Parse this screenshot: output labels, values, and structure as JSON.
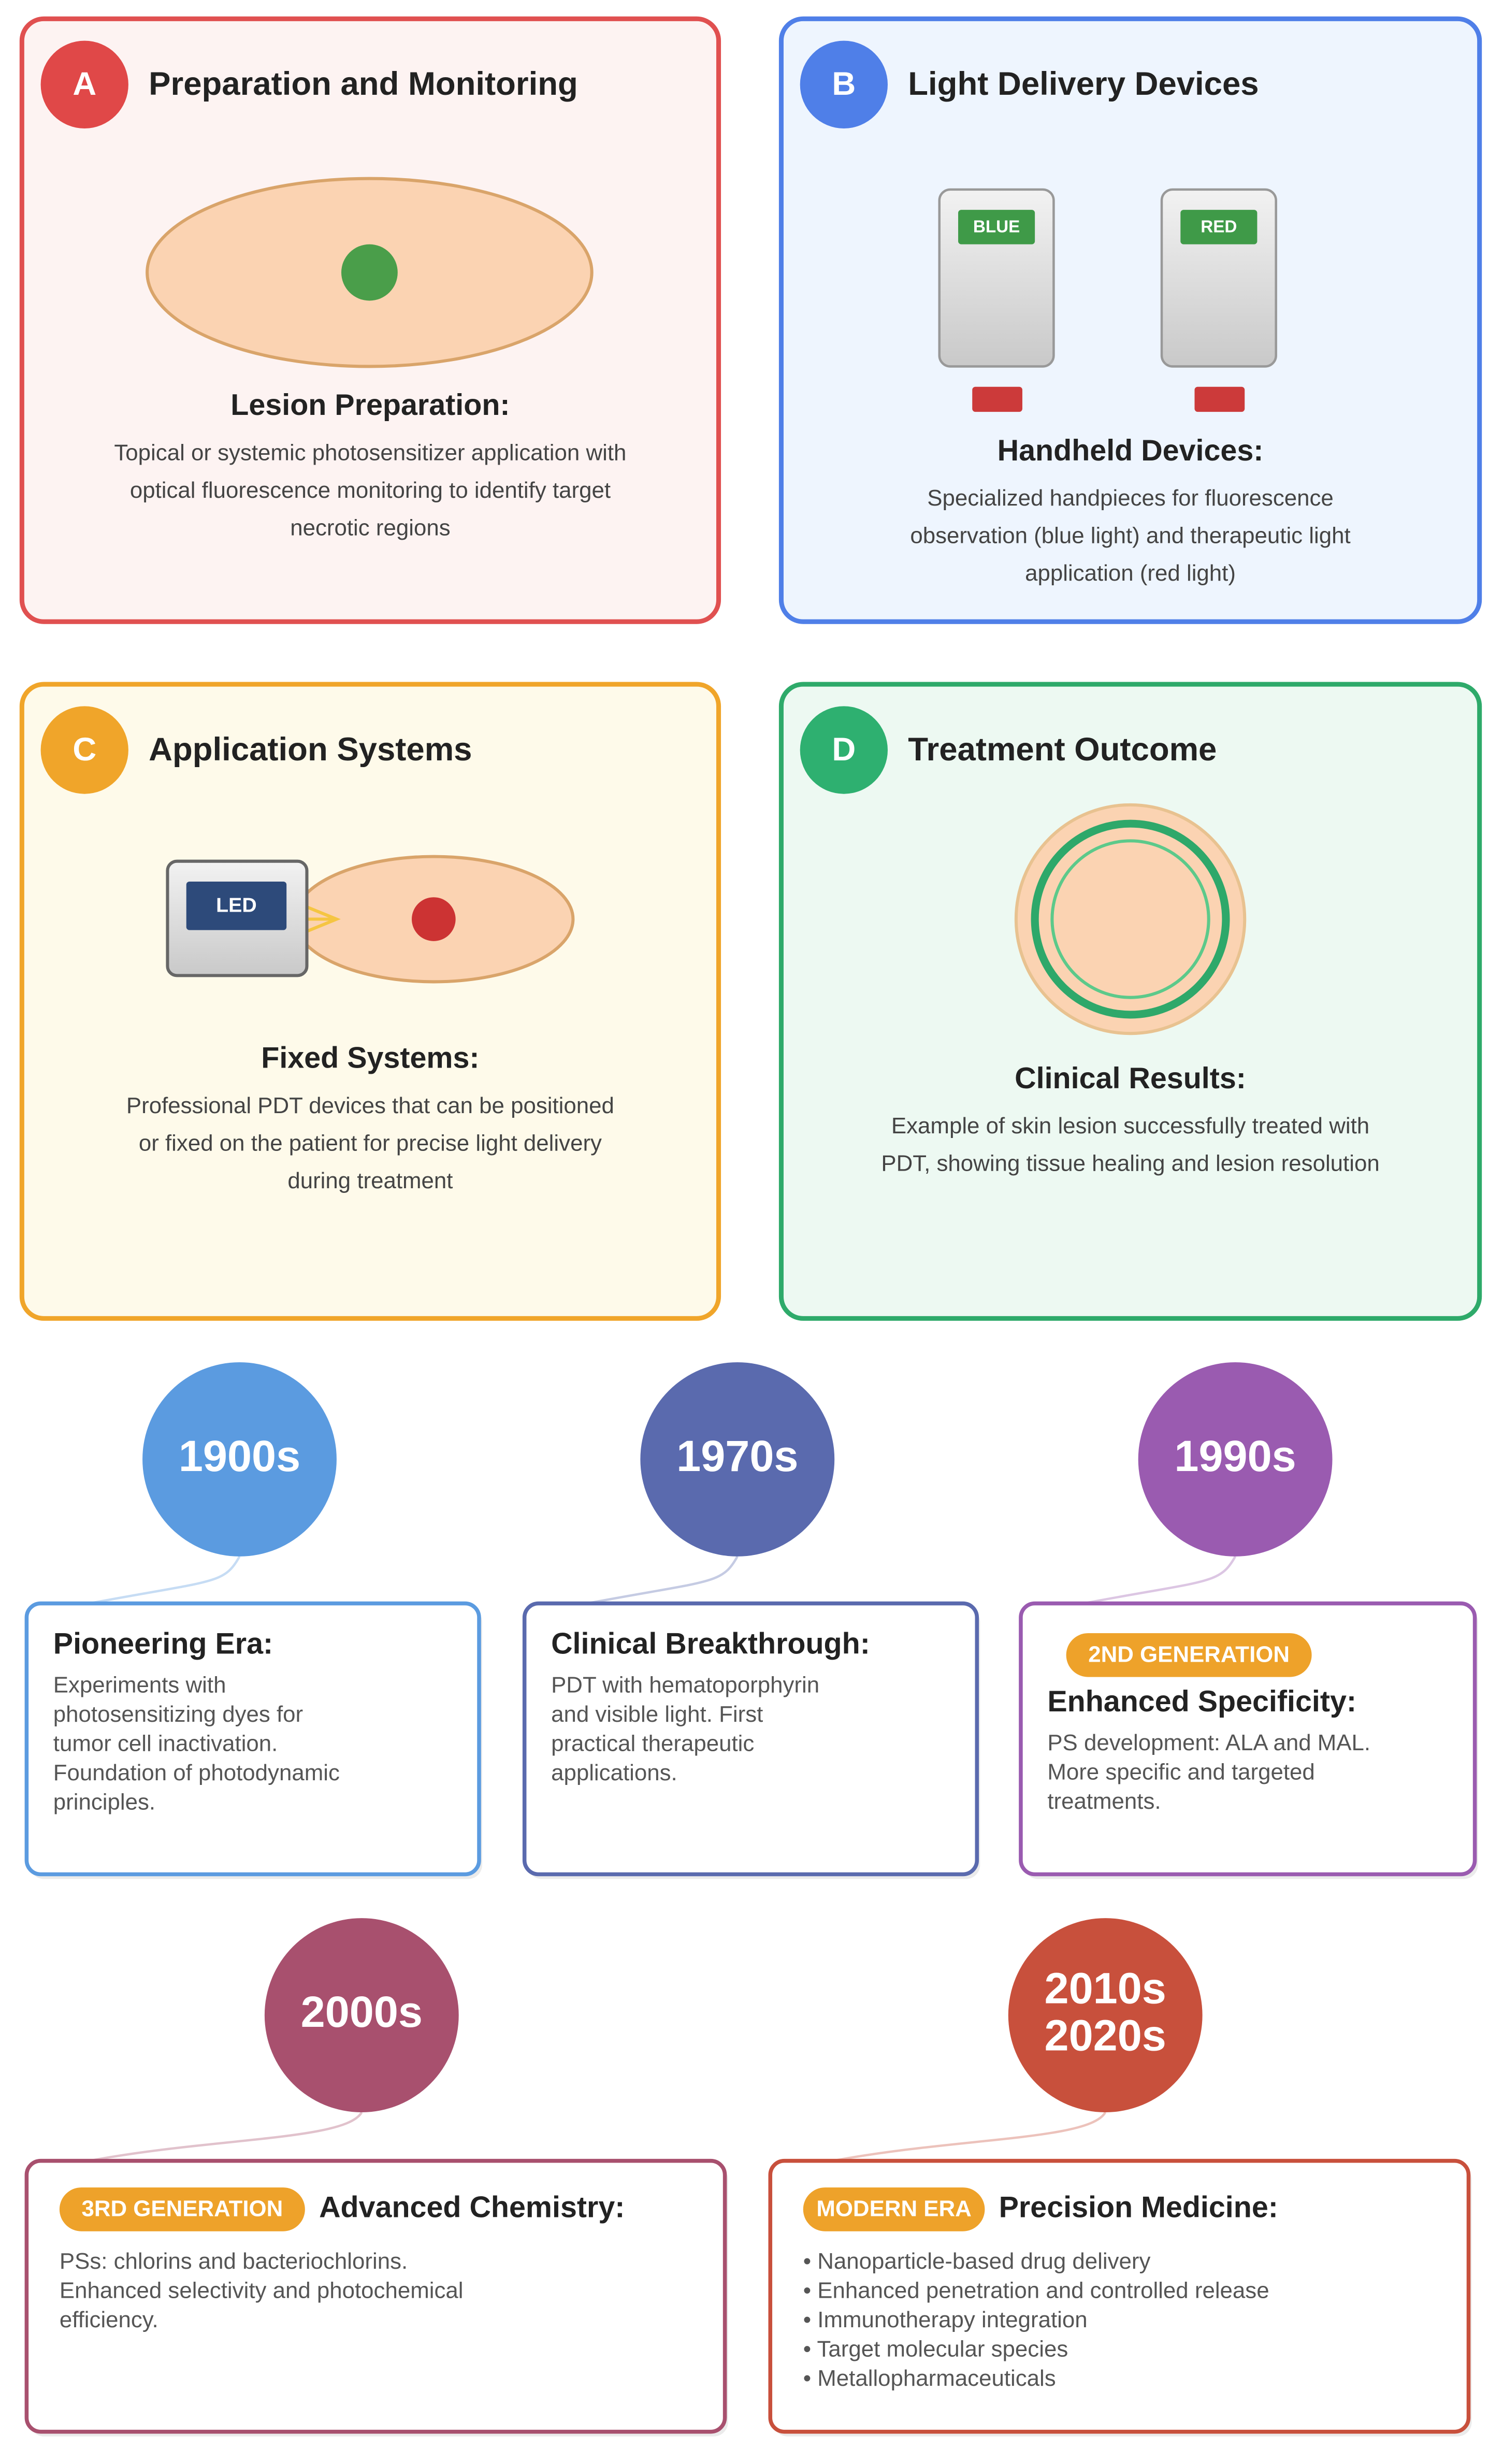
{
  "panels": [
    {
      "letter": "A",
      "title": "Preparation and Monitoring",
      "subtitle": "Lesion Preparation:",
      "description": [
        "Topical or systemic photosensitizer application with",
        "optical fluorescence monitoring to identify target",
        "necrotic regions"
      ]
    },
    {
      "letter": "B",
      "title": "Light Delivery Devices",
      "device_labels": [
        "BLUE",
        "RED"
      ],
      "subtitle": "Handheld Devices:",
      "description": [
        "Specialized handpieces for fluorescence",
        "observation (blue light) and therapeutic light",
        "application (red light)"
      ]
    },
    {
      "letter": "C",
      "title": "Application Systems",
      "device_label": "LED",
      "subtitle": "Fixed Systems:",
      "description": [
        "Professional PDT devices that can be positioned",
        "or fixed on the patient for precise light delivery",
        "during treatment"
      ]
    },
    {
      "letter": "D",
      "title": "Treatment Outcome",
      "subtitle": "Clinical Results:",
      "description": [
        "Example of skin lesion successfully treated with",
        "PDT, showing tissue healing and lesion resolution"
      ]
    }
  ],
  "timeline": [
    {
      "era": [
        "1900s"
      ],
      "title": "Pioneering Era:",
      "description": [
        "Experiments with",
        "photosensitizing dyes for",
        "tumor cell inactivation.",
        "Foundation of photodynamic",
        "principles."
      ]
    },
    {
      "era": [
        "1970s"
      ],
      "title": "Clinical Breakthrough:",
      "description": [
        "PDT with hematoporphyrin",
        "and visible light. First",
        "practical therapeutic",
        "applications."
      ]
    },
    {
      "era": [
        "1990s"
      ],
      "badge": "2ND GENERATION",
      "title": "Enhanced Specificity:",
      "description": [
        "PS development: ALA and MAL.",
        "More specific and targeted",
        "treatments."
      ]
    },
    {
      "era": [
        "2000s"
      ],
      "badge": "3RD GENERATION",
      "title": "Advanced Chemistry:",
      "description": [
        "PSs: chlorins and bacteriochlorins.",
        "Enhanced selectivity and photochemical",
        "efficiency."
      ]
    },
    {
      "era": [
        "2010s",
        "2020s"
      ],
      "badge": "MODERN ERA",
      "title": "Precision Medicine:",
      "description": [
        "• Nanoparticle-based drug delivery",
        "• Enhanced penetration and controlled release",
        "• Immunotherapy integration",
        "• Target molecular species",
        "• Metallopharmaceuticals"
      ]
    }
  ]
}
